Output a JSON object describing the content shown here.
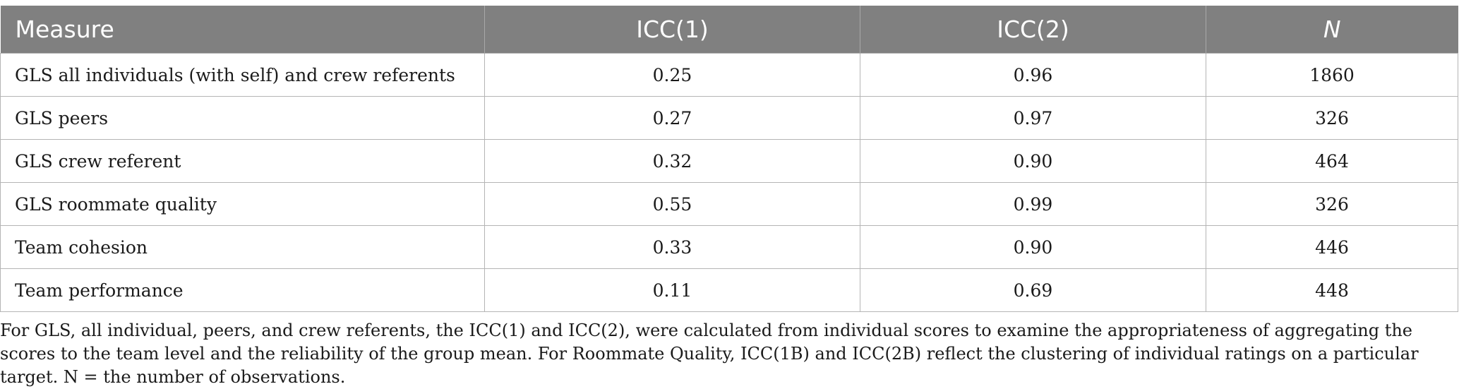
{
  "table": {
    "headers": [
      {
        "label": "Measure",
        "italic": false
      },
      {
        "label": "ICC(1)",
        "italic": false
      },
      {
        "label": "ICC(2)",
        "italic": false
      },
      {
        "label": "N",
        "italic": true
      }
    ],
    "rows": [
      {
        "measure": "GLS all individuals (with self) and crew referents",
        "icc1": "0.25",
        "icc2": "0.96",
        "n": "1860"
      },
      {
        "measure": "GLS peers",
        "icc1": "0.27",
        "icc2": "0.97",
        "n": "326"
      },
      {
        "measure": "GLS crew referent",
        "icc1": "0.32",
        "icc2": "0.90",
        "n": "464"
      },
      {
        "measure": "GLS roommate quality",
        "icc1": "0.55",
        "icc2": "0.99",
        "n": "326"
      },
      {
        "measure": "Team cohesion",
        "icc1": "0.33",
        "icc2": "0.90",
        "n": "446"
      },
      {
        "measure": "Team performance",
        "icc1": "0.11",
        "icc2": "0.69",
        "n": "448"
      }
    ],
    "header_bg": "#808080",
    "header_text_color": "#ffffff"
  },
  "footnote": "For GLS, all individual, peers, and crew referents, the ICC(1) and ICC(2), were calculated from individual scores to examine the appropriateness of aggregating the scores to the team level and the reliability of the group mean. For Roommate Quality, ICC(1B) and ICC(2B) reflect the clustering of individual ratings on a particular target. N = the number of observations."
}
